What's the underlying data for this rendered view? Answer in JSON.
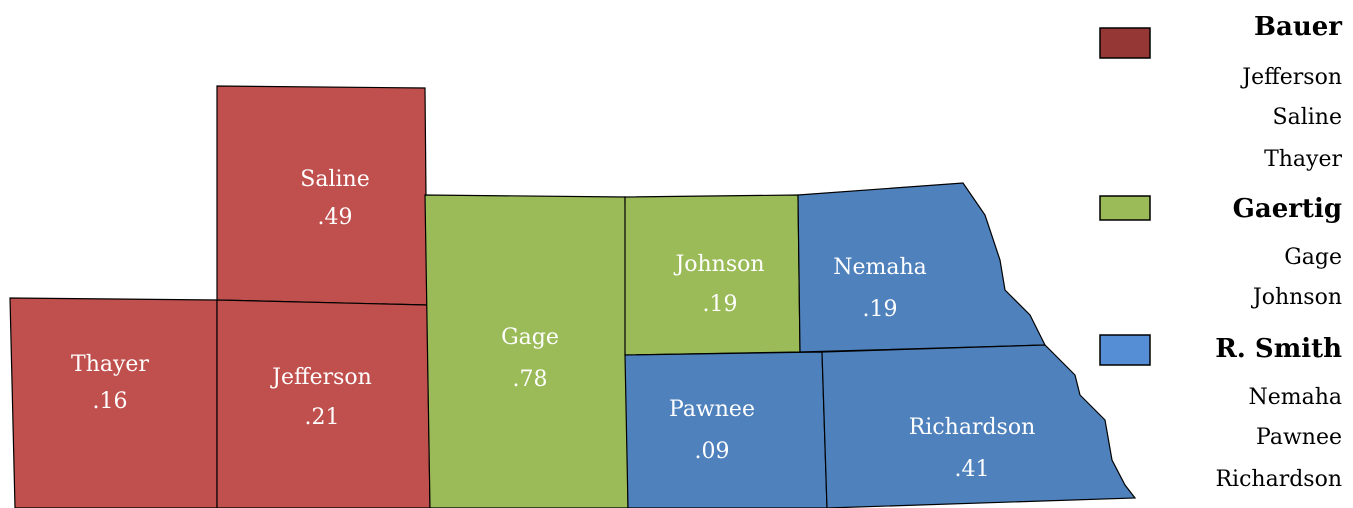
{
  "counties": [
    {
      "name": "Thayer",
      "value": ".16",
      "group": 0
    },
    {
      "name": "Saline",
      "value": ".49",
      "group": 0
    },
    {
      "name": "Jefferson",
      "value": ".21",
      "group": 0
    },
    {
      "name": "Gage",
      "value": ".78",
      "group": 1
    },
    {
      "name": "Johnson",
      "value": ".19",
      "group": 1
    },
    {
      "name": "Nemaha",
      "value": ".19",
      "group": 2
    },
    {
      "name": "Pawnee",
      "value": ".09",
      "group": 2
    },
    {
      "name": "Richardson",
      "value": ".41",
      "group": 2
    }
  ],
  "legend": [
    {
      "name": "Bauer",
      "color": "#c0504d",
      "swatch_color": "#953735",
      "counties": [
        "Jefferson",
        "Saline",
        "Thayer"
      ]
    },
    {
      "name": "Gaertig",
      "color": "#9bbb59",
      "swatch_color": "#9bbb59",
      "counties": [
        "Gage",
        "Johnson"
      ]
    },
    {
      "name": "R. Smith",
      "color": "#4f81bd",
      "swatch_color": "#558ed5",
      "counties": [
        "Nemaha",
        "Pawnee",
        "Richardson"
      ]
    }
  ]
}
